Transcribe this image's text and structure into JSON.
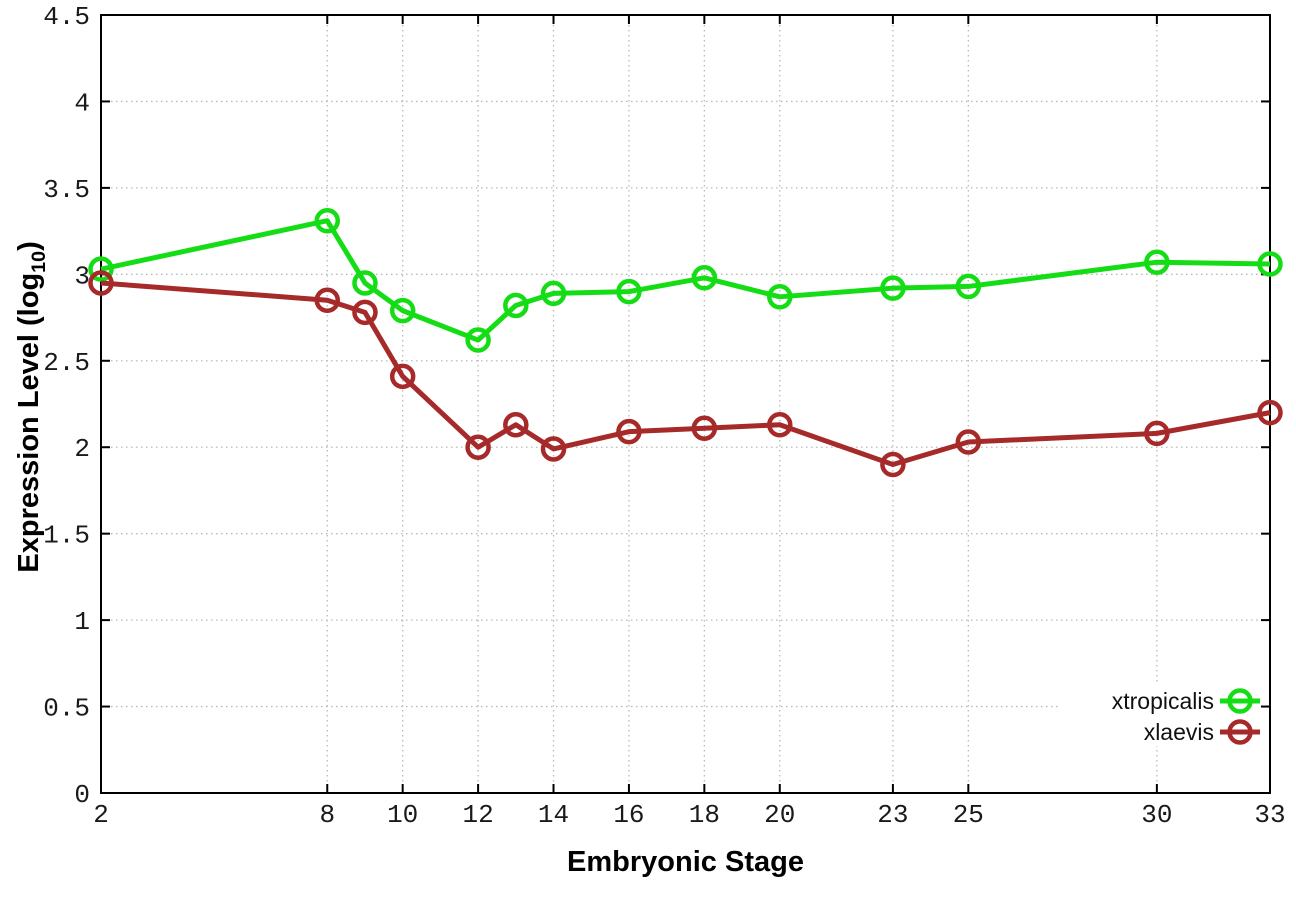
{
  "chart_data": {
    "type": "line",
    "title": "",
    "xlabel": "Embryonic Stage",
    "ylabel": {
      "text": "Expression Level (log",
      "sub": "10",
      "suffix": ")"
    },
    "x": [
      2,
      8,
      9,
      10,
      12,
      13,
      14,
      16,
      18,
      20,
      23,
      25,
      30,
      33
    ],
    "xticks": [
      2,
      8,
      10,
      12,
      14,
      16,
      18,
      20,
      23,
      25,
      30,
      33
    ],
    "yticks": [
      0,
      0.5,
      1,
      1.5,
      2,
      2.5,
      3,
      3.5,
      4,
      4.5
    ],
    "xlim": [
      2,
      33
    ],
    "ylim": [
      0,
      4.5
    ],
    "grid": true,
    "grid_style": "dotted",
    "grid_color": "#b9b9b9",
    "axis_color": "#000000",
    "legend_position": "bottom-right",
    "marker": "open-circle",
    "series": [
      {
        "name": "xtropicalis",
        "color": "#15dd15",
        "values": [
          3.03,
          3.31,
          2.95,
          2.79,
          2.62,
          2.82,
          2.89,
          2.9,
          2.98,
          2.87,
          2.92,
          2.93,
          3.07,
          3.06
        ]
      },
      {
        "name": "xlaevis",
        "color": "#a62a2a",
        "values": [
          2.95,
          2.85,
          2.78,
          2.41,
          2.0,
          2.13,
          1.99,
          2.09,
          2.11,
          2.13,
          1.9,
          2.03,
          2.08,
          2.2
        ]
      }
    ]
  }
}
